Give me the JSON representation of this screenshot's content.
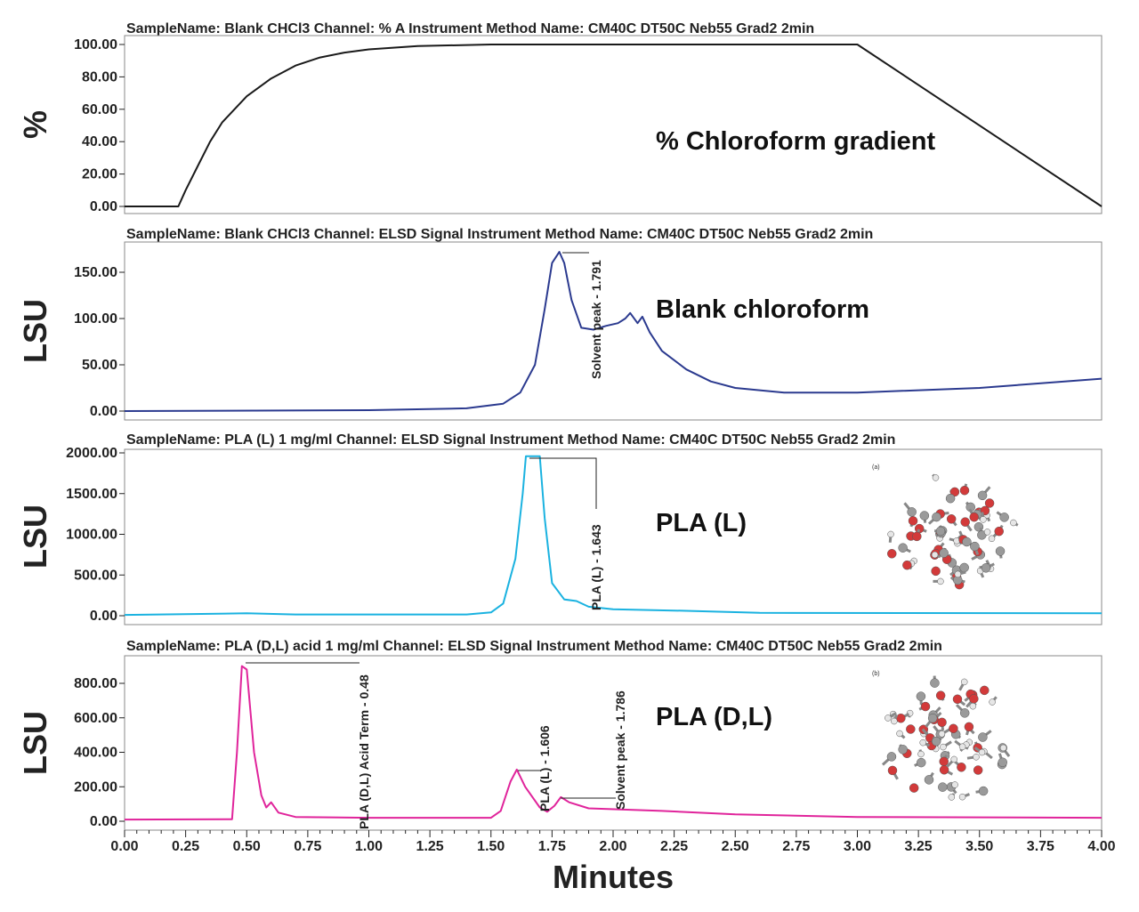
{
  "chart_data": [
    {
      "type": "line",
      "title": "SampleName: Blank CHCl3 Channel: % A Instrument Method Name: CM40C DT50C Neb55 Grad2 2min",
      "ylabel": "%",
      "label": "% Chloroform gradient",
      "color": "#1a1a1a",
      "ylim": [
        0,
        100
      ],
      "yticks": [
        "0.00",
        "20.00",
        "40.00",
        "60.00",
        "80.00",
        "100.00"
      ],
      "x": [
        0,
        0.22,
        0.25,
        0.3,
        0.35,
        0.4,
        0.5,
        0.6,
        0.7,
        0.8,
        0.9,
        1.0,
        1.2,
        1.5,
        3.0,
        4.0
      ],
      "y": [
        0,
        0,
        10,
        25,
        40,
        52,
        68,
        79,
        87,
        92,
        95,
        97,
        99,
        100,
        100,
        0
      ]
    },
    {
      "type": "line",
      "title": "SampleName: Blank CHCl3 Channel: ELSD Signal Instrument Method Name: CM40C DT50C Neb55 Grad2 2min",
      "ylabel": "LSU",
      "label": "Blank chloroform",
      "color": "#2b3a8f",
      "ylim": [
        0,
        180
      ],
      "yticks": [
        "0.00",
        "50.00",
        "100.00",
        "150.00"
      ],
      "x": [
        0,
        1.0,
        1.4,
        1.55,
        1.62,
        1.68,
        1.72,
        1.75,
        1.78,
        1.8,
        1.83,
        1.87,
        1.92,
        1.97,
        2.02,
        2.05,
        2.07,
        2.1,
        2.12,
        2.15,
        2.2,
        2.3,
        2.4,
        2.5,
        2.7,
        3.0,
        3.5,
        4.0
      ],
      "y": [
        0,
        1,
        3,
        8,
        20,
        50,
        110,
        160,
        172,
        160,
        120,
        90,
        88,
        92,
        95,
        100,
        106,
        95,
        102,
        85,
        65,
        45,
        32,
        25,
        20,
        20,
        25,
        35
      ],
      "annotations": [
        "Solvent peak - 1.791"
      ]
    },
    {
      "type": "line",
      "title": "SampleName: PLA (L) 1 mg/ml Channel: ELSD Signal Instrument Method Name: CM40C DT50C Neb55 Grad2 2min",
      "ylabel": "LSU",
      "label": "PLA (L)",
      "color": "#1ab2e0",
      "ylim": [
        0,
        2050
      ],
      "yticks": [
        "0.00",
        "500.00",
        "1000.00",
        "1500.00",
        "2000.00"
      ],
      "x": [
        0,
        0.5,
        0.7,
        1.4,
        1.5,
        1.55,
        1.6,
        1.63,
        1.643,
        1.7,
        1.72,
        1.75,
        1.8,
        1.85,
        1.9,
        2.0,
        2.3,
        2.6,
        4.0
      ],
      "y": [
        10,
        30,
        15,
        15,
        40,
        150,
        700,
        1500,
        1960,
        1960,
        1200,
        400,
        200,
        180,
        110,
        80,
        60,
        35,
        30
      ],
      "annotations": [
        "PLA (L) - 1.643"
      ],
      "inset_label": "(a)"
    },
    {
      "type": "line",
      "title": "SampleName: PLA (D,L) acid 1 mg/ml Channel: ELSD Signal Instrument Method Name: CM40C DT50C Neb55 Grad2 2min",
      "ylabel": "LSU",
      "label": "PLA (D,L)",
      "color": "#e0249b",
      "ylim": [
        0,
        950
      ],
      "yticks": [
        "0.00",
        "200.00",
        "400.00",
        "600.00",
        "800.00"
      ],
      "x": [
        0,
        0.44,
        0.46,
        0.48,
        0.5,
        0.53,
        0.56,
        0.58,
        0.6,
        0.63,
        0.7,
        1.0,
        1.5,
        1.54,
        1.58,
        1.606,
        1.64,
        1.7,
        1.73,
        1.76,
        1.786,
        1.82,
        1.9,
        2.2,
        2.5,
        3.0,
        4.0
      ],
      "y": [
        10,
        12,
        400,
        900,
        880,
        400,
        150,
        80,
        110,
        50,
        25,
        20,
        20,
        60,
        230,
        300,
        200,
        80,
        55,
        90,
        140,
        110,
        75,
        60,
        40,
        25,
        20
      ],
      "annotations": [
        "PLA (D,L) Acid Term - 0.48",
        "PLA (L) - 1.606",
        "Solvent peak - 1.786"
      ],
      "inset_label": "(b)"
    }
  ],
  "xaxis": {
    "label": "Minutes",
    "xlim": [
      0,
      4
    ],
    "ticks": [
      "0.00",
      "0.25",
      "0.50",
      "0.75",
      "1.00",
      "1.25",
      "1.50",
      "1.75",
      "2.00",
      "2.25",
      "2.50",
      "2.75",
      "3.00",
      "3.25",
      "3.50",
      "3.75",
      "4.00"
    ]
  }
}
